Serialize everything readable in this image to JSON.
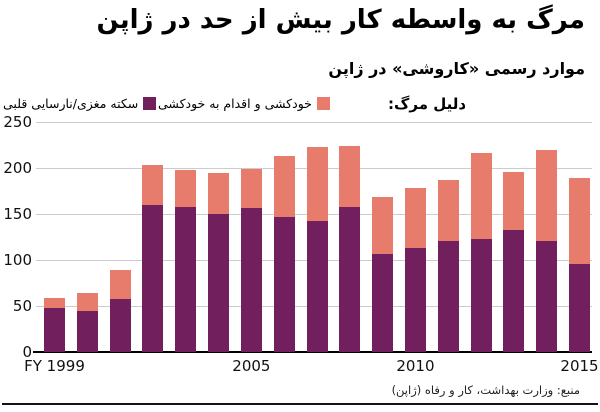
{
  "header": {
    "title": "مرگ به واسطه کار بیش از حد در ژاپن",
    "subtitle": "موارد رسمی «کاروشی» در ژاپن"
  },
  "legend": {
    "intro_label": "دلیل مرگ:",
    "items": [
      {
        "id": "suicide",
        "label": "خودکشی و اقدام به خودکشی",
        "color": "#e87c6c"
      },
      {
        "id": "stroke-heart",
        "label": "سکته مغزی/نارسایی قلبی",
        "color": "#72205d"
      }
    ]
  },
  "chart_data": {
    "type": "bar",
    "stacked": true,
    "title": "مرگ به واسطه کار بیش از حد در ژاپن",
    "subtitle": "موارد رسمی «کاروشی» در ژاپن",
    "categories": [
      "FY 1999",
      "FY 2000",
      "FY 2001",
      "FY 2002",
      "FY 2003",
      "FY 2004",
      "FY 2005",
      "FY 2006",
      "FY 2007",
      "FY 2008",
      "FY 2009",
      "FY 2010",
      "FY 2011",
      "FY 2012",
      "FY 2013",
      "FY 2014",
      "FY 2015"
    ],
    "series": [
      {
        "id": "stroke-heart",
        "name": "سکته مغزی/نارسایی قلبی",
        "color": "#72205d",
        "values": [
          48,
          45,
          58,
          160,
          158,
          150,
          157,
          147,
          142,
          158,
          106,
          113,
          121,
          123,
          133,
          121,
          96
        ]
      },
      {
        "id": "suicide",
        "name": "خودکشی و اقدام به خودکشی",
        "color": "#e87c6c",
        "values": [
          11,
          19,
          31,
          43,
          40,
          45,
          42,
          66,
          81,
          66,
          63,
          65,
          66,
          93,
          63,
          99,
          93
        ]
      }
    ],
    "totals": [
      59,
      64,
      89,
      203,
      198,
      195,
      199,
      213,
      223,
      224,
      169,
      178,
      187,
      216,
      196,
      220,
      189
    ],
    "ylim": [
      0,
      250
    ],
    "yticks": [
      0,
      50,
      100,
      150,
      200,
      250
    ],
    "xticks": [
      {
        "index": 0,
        "label": "FY 1999"
      },
      {
        "index": 6,
        "label": "2005"
      },
      {
        "index": 11,
        "label": "2010"
      },
      {
        "index": 16,
        "label": "2015"
      }
    ],
    "grid": "horizontal",
    "legend_position": "top"
  },
  "source": {
    "text": "منبع: وزارت بهداشت، کار و رفاه (ژاپن)"
  },
  "colors": {
    "suicide": "#e87c6c",
    "stroke_heart": "#72205d",
    "gridline": "#cccccc",
    "axis": "#000000",
    "text": "#000000"
  }
}
